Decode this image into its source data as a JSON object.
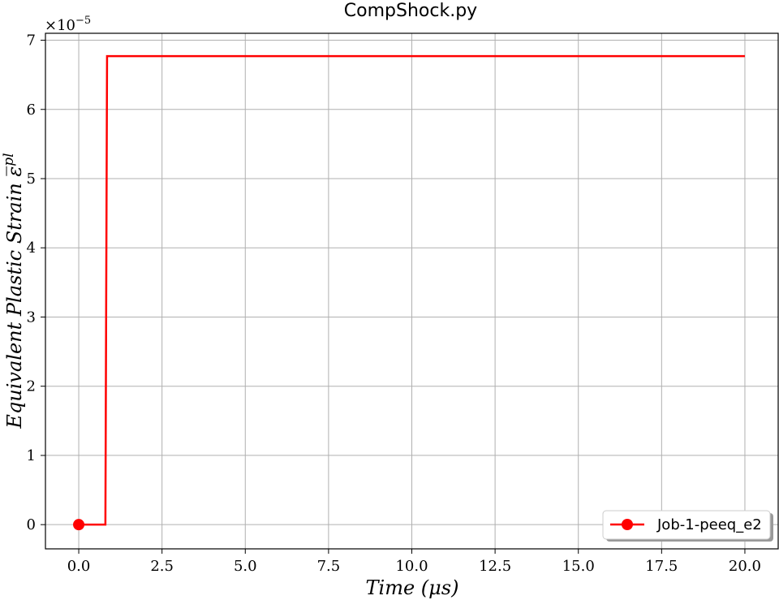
{
  "chart_data": {
    "type": "line",
    "title": "CompShock.py",
    "xlabel": "Time (μs)",
    "ylabel": "Equivalent Plastic Strain ε̅",
    "ylabel_superscript": "pl",
    "y_scale_label": "×10",
    "y_scale_exponent": "−5",
    "xlim": [
      -1.0,
      21.0
    ],
    "ylim": [
      -0.35,
      7.1
    ],
    "x_ticks": [
      0.0,
      2.5,
      5.0,
      7.5,
      10.0,
      12.5,
      15.0,
      17.5,
      20.0
    ],
    "x_tick_labels": [
      "0.0",
      "2.5",
      "5.0",
      "7.5",
      "10.0",
      "12.5",
      "15.0",
      "17.5",
      "20.0"
    ],
    "y_ticks": [
      0,
      1,
      2,
      3,
      4,
      5,
      6,
      7
    ],
    "y_tick_labels": [
      "0",
      "1",
      "2",
      "3",
      "4",
      "5",
      "6",
      "7"
    ],
    "grid": true,
    "legend_position": "bottom-right",
    "series": [
      {
        "name": "Job-1-peeq_e2",
        "color": "#ff0000",
        "marker": "circle",
        "x": [
          0.0,
          0.8,
          0.85,
          20.0
        ],
        "y": [
          0.0,
          0.0,
          6.77,
          6.77
        ]
      }
    ]
  }
}
